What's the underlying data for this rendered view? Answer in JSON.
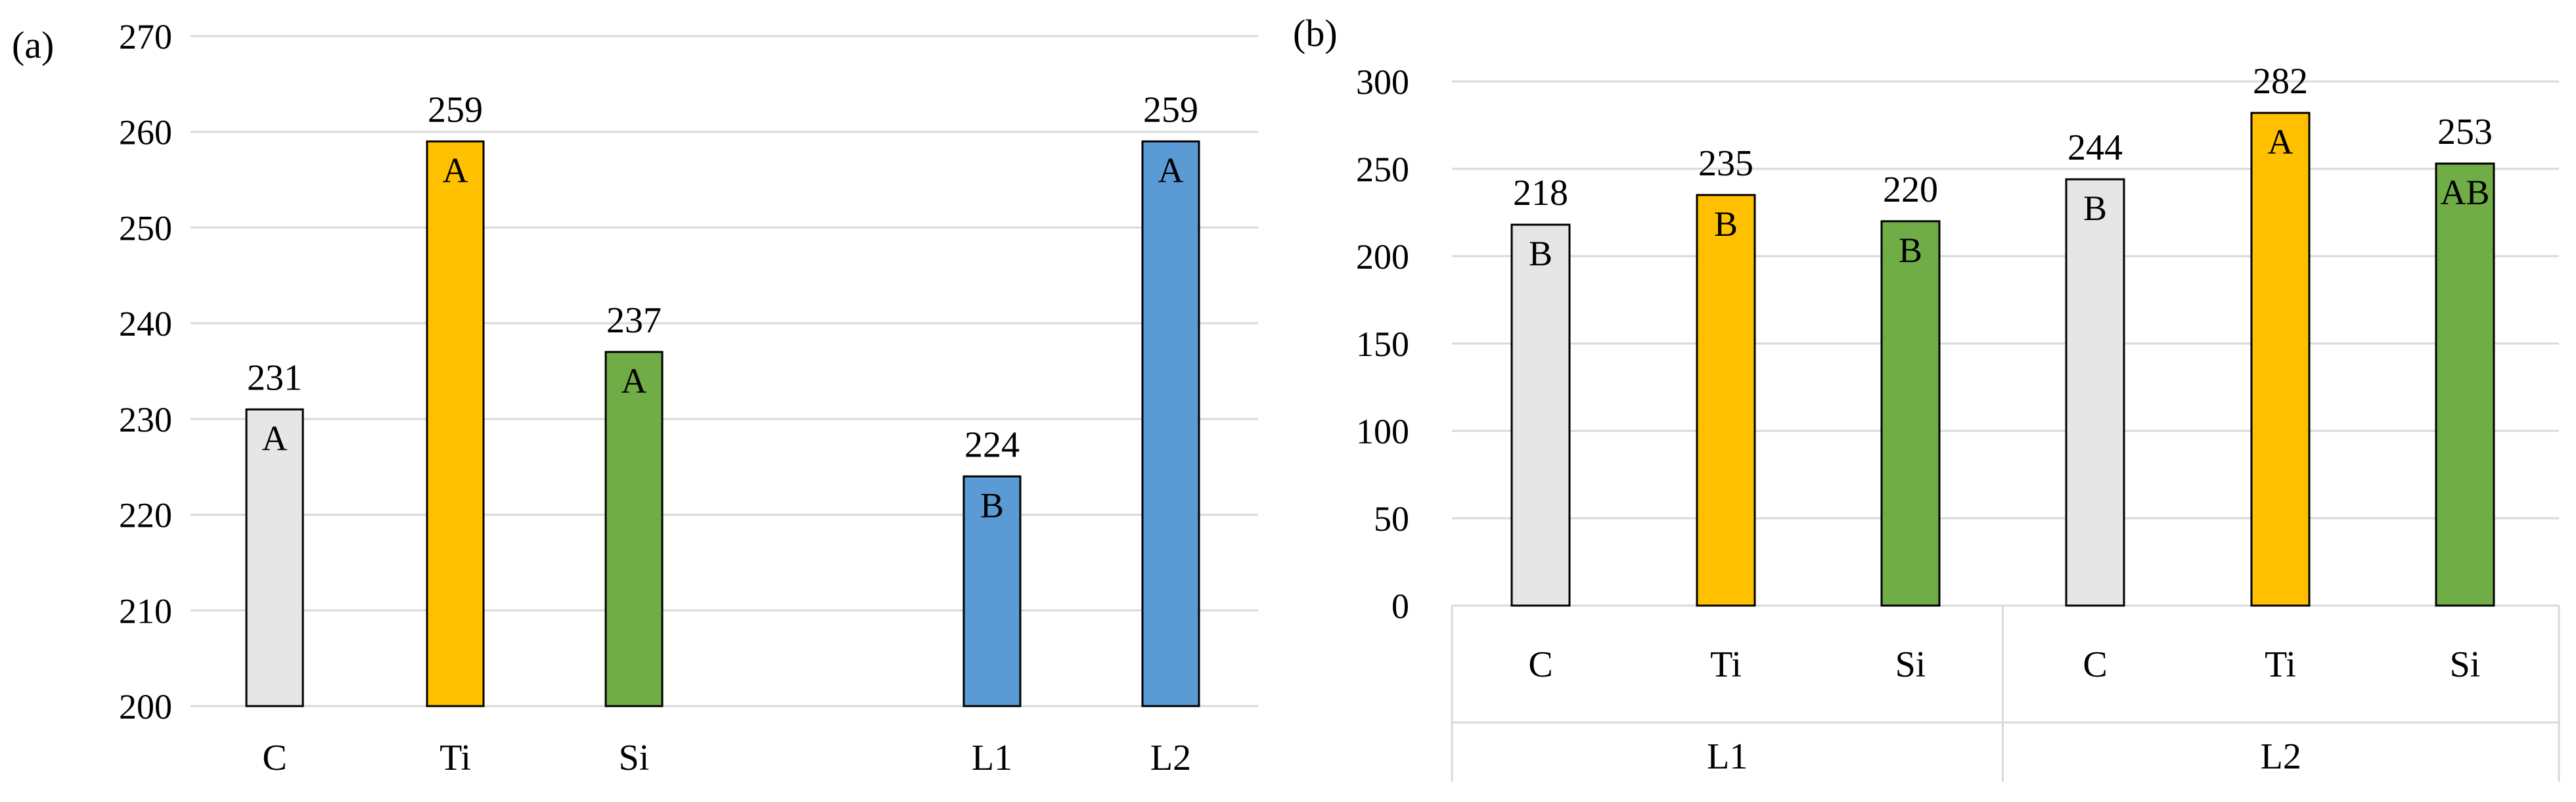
{
  "chart_data": [
    {
      "panel": "(a)",
      "type": "bar",
      "categories": [
        "C",
        "Ti",
        "Si",
        "",
        "L1",
        "L2"
      ],
      "values": [
        231,
        259,
        237,
        null,
        224,
        259
      ],
      "data_labels": [
        "231",
        "259",
        "237",
        "",
        "224",
        "259"
      ],
      "group_letters": [
        "A",
        "A",
        "A",
        "",
        "B",
        "A"
      ],
      "colors": [
        "#e6e6e6",
        "#ffc000",
        "#70ad47",
        "",
        "#5b9bd5",
        "#5b9bd5"
      ],
      "ylim": [
        200,
        270
      ],
      "yticks": [
        "200",
        "210",
        "220",
        "230",
        "240",
        "250",
        "260",
        "270"
      ],
      "grid": true,
      "legend": "none"
    },
    {
      "panel": "(b)",
      "type": "bar",
      "categories": [
        "C",
        "Ti",
        "Si",
        "C",
        "Ti",
        "Si"
      ],
      "groups": [
        "L1",
        "L2"
      ],
      "values": [
        218,
        235,
        220,
        244,
        282,
        253
      ],
      "data_labels": [
        "218",
        "235",
        "220",
        "244",
        "282",
        "253"
      ],
      "group_letters": [
        "B",
        "B",
        "B",
        "B",
        "A",
        "AB"
      ],
      "colors": [
        "#e6e6e6",
        "#ffc000",
        "#70ad47",
        "#e6e6e6",
        "#ffc000",
        "#70ad47"
      ],
      "ylim": [
        0,
        300
      ],
      "yticks": [
        "0",
        "50",
        "100",
        "150",
        "200",
        "250",
        "300"
      ],
      "grid": true,
      "legend": "none"
    }
  ]
}
